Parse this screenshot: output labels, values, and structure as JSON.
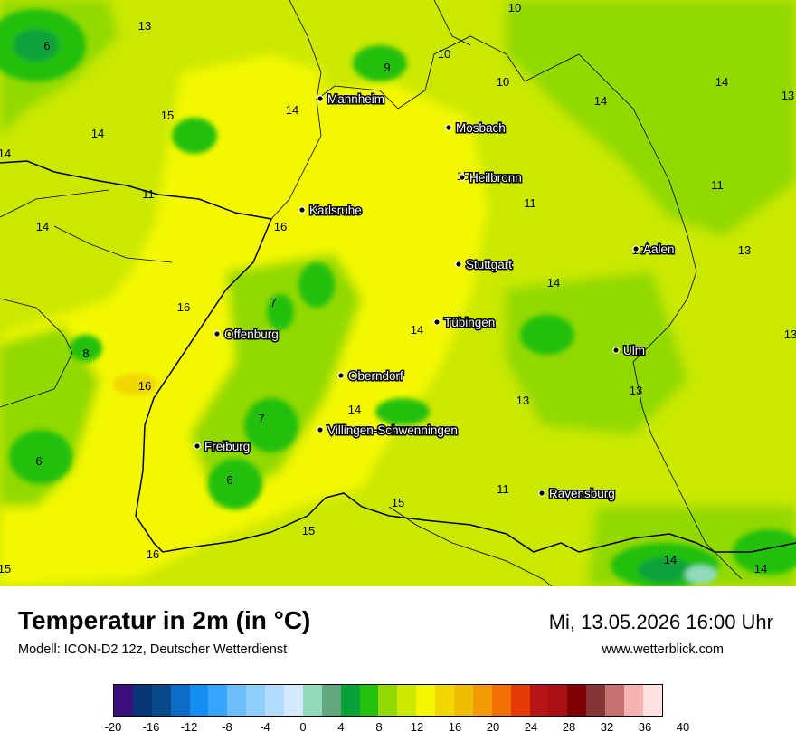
{
  "map": {
    "cities": [
      {
        "name": "Mannheim"
      },
      {
        "name": "Mosbach"
      },
      {
        "name": "Heilbronn"
      },
      {
        "name": "Karlsruhe"
      },
      {
        "name": "Stuttgart"
      },
      {
        "name": "Aalen"
      },
      {
        "name": "Tübingen"
      },
      {
        "name": "Offenburg"
      },
      {
        "name": "Ulm"
      },
      {
        "name": "Oberndorf"
      },
      {
        "name": "Villingen-Schwenningen"
      },
      {
        "name": "Freiburg"
      },
      {
        "name": "Ravensburg"
      }
    ],
    "isotherm_labels": [
      "10",
      "6",
      "13",
      "10",
      "9",
      "10",
      "14",
      "14",
      "13",
      "15",
      "14",
      "14",
      "14",
      "11",
      "11",
      "15",
      "11",
      "16",
      "14",
      "12",
      "13",
      "7",
      "16",
      "14",
      "14",
      "13",
      "8",
      "16",
      "13",
      "14",
      "7",
      "13",
      "6",
      "6",
      "11",
      "15",
      "15",
      "16",
      "15",
      "14",
      "14"
    ]
  },
  "footer": {
    "title": "Temperatur in 2m (in °C)",
    "subtitle": "Modell: ICON-D2 12z, Deutscher Wetterdienst",
    "datetime": "Mi, 13.05.2026 16:00 Uhr",
    "website": "www.wetterblick.com"
  },
  "legend": {
    "colors": [
      "#3c0f7d",
      "#063677",
      "#09498a",
      "#0d6bc6",
      "#148ef5",
      "#39a4fb",
      "#6ebdfb",
      "#8fcdfc",
      "#b3dcfc",
      "#d4e9fc",
      "#91dbbb",
      "#63a77f",
      "#08a23b",
      "#24c00b",
      "#91d900",
      "#cae800",
      "#f3f800",
      "#f2d600",
      "#f1bd00",
      "#f29b05",
      "#f37005",
      "#e83a07",
      "#b81517",
      "#a90f13",
      "#7e0005",
      "#853535",
      "#c57271",
      "#f4b3b1",
      "#fee2e2"
    ],
    "ticks": [
      "-20",
      "-16",
      "-12",
      "-8",
      "-4",
      "0",
      "4",
      "8",
      "12",
      "16",
      "20",
      "24",
      "28",
      "32",
      "36",
      "40"
    ]
  }
}
